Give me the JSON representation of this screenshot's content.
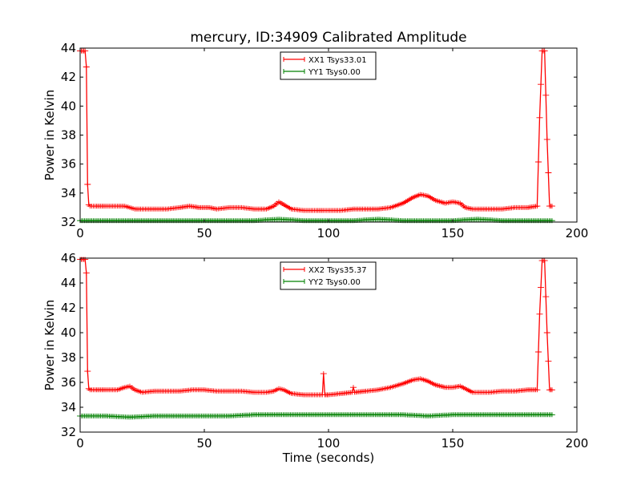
{
  "figure_title": "mercury, ID:34909 Calibrated Amplitude",
  "chart_data": [
    {
      "type": "line",
      "title": "mercury, ID:34909 Calibrated Amplitude",
      "xlabel": "",
      "ylabel": "Power in Kelvin",
      "xlim": [
        0,
        200
      ],
      "ylim": [
        32,
        44
      ],
      "xticks": [
        "0",
        "50",
        "100",
        "150",
        "200"
      ],
      "yticks": [
        "32",
        "34",
        "36",
        "38",
        "40",
        "42",
        "44"
      ],
      "legend_position": "top-center",
      "series": [
        {
          "name": "XX1 Tsys33.01",
          "color": "#ff0000",
          "marker": "plus",
          "x": [
            0,
            1,
            2,
            2.5,
            3,
            3.5,
            4,
            6,
            10,
            15,
            18,
            20,
            22,
            25,
            30,
            35,
            40,
            44,
            48,
            52,
            55,
            60,
            65,
            70,
            75,
            78,
            80,
            82,
            85,
            90,
            95,
            98,
            100,
            105,
            110,
            115,
            120,
            125,
            130,
            134,
            137,
            140,
            143,
            147,
            150,
            153,
            155,
            158,
            160,
            165,
            170,
            175,
            180,
            184,
            185,
            186,
            187,
            188,
            189,
            190
          ],
          "y": [
            43.8,
            43.8,
            43.8,
            42.7,
            34.6,
            33.2,
            33.1,
            33.1,
            33.1,
            33.1,
            33.1,
            33.0,
            32.9,
            32.9,
            32.9,
            32.9,
            33.0,
            33.1,
            33.0,
            33.0,
            32.9,
            33.0,
            33.0,
            32.9,
            32.9,
            33.1,
            33.4,
            33.2,
            32.9,
            32.8,
            32.8,
            32.8,
            32.8,
            32.8,
            32.9,
            32.9,
            32.9,
            33.0,
            33.3,
            33.7,
            33.9,
            33.8,
            33.5,
            33.3,
            33.4,
            33.3,
            33.0,
            32.9,
            32.9,
            32.9,
            32.9,
            33.0,
            33.0,
            33.1,
            39.2,
            43.8,
            43.8,
            37.7,
            33.1,
            33.1
          ]
        },
        {
          "name": "YY1 Tsys0.00",
          "color": "#008000",
          "marker": "plus",
          "x": [
            0,
            10,
            20,
            30,
            40,
            50,
            60,
            70,
            80,
            90,
            100,
            110,
            120,
            130,
            140,
            150,
            160,
            170,
            180,
            190
          ],
          "y": [
            32.1,
            32.1,
            32.1,
            32.1,
            32.1,
            32.1,
            32.1,
            32.1,
            32.2,
            32.1,
            32.1,
            32.1,
            32.2,
            32.1,
            32.1,
            32.1,
            32.2,
            32.1,
            32.1,
            32.1
          ]
        }
      ]
    },
    {
      "type": "line",
      "title": "",
      "xlabel": "Time (seconds)",
      "ylabel": "Power in Kelvin",
      "xlim": [
        0,
        200
      ],
      "ylim": [
        32,
        46
      ],
      "xticks": [
        "0",
        "50",
        "100",
        "150",
        "200"
      ],
      "yticks": [
        "32",
        "34",
        "36",
        "38",
        "40",
        "42",
        "44",
        "46"
      ],
      "legend_position": "top-center",
      "series": [
        {
          "name": "XX2 Tsys35.37",
          "color": "#ff0000",
          "marker": "plus",
          "x": [
            0,
            1,
            2,
            2.5,
            3,
            3.5,
            4,
            6,
            10,
            15,
            18,
            20,
            22,
            25,
            30,
            35,
            40,
            45,
            50,
            55,
            60,
            65,
            70,
            75,
            78,
            80,
            82,
            85,
            90,
            95,
            97.5,
            98,
            98.5,
            100,
            105,
            109.5,
            110,
            110.5,
            115,
            120,
            125,
            130,
            134,
            137,
            140,
            143,
            147,
            150,
            153,
            155,
            158,
            160,
            165,
            170,
            175,
            180,
            184,
            185,
            186,
            187,
            188,
            189,
            190
          ],
          "y": [
            45.9,
            45.9,
            45.9,
            44.8,
            36.9,
            35.5,
            35.4,
            35.4,
            35.4,
            35.4,
            35.6,
            35.7,
            35.4,
            35.2,
            35.3,
            35.3,
            35.3,
            35.4,
            35.4,
            35.3,
            35.3,
            35.3,
            35.2,
            35.2,
            35.3,
            35.5,
            35.4,
            35.1,
            35.0,
            35.0,
            35.0,
            36.7,
            35.0,
            35.0,
            35.1,
            35.2,
            35.6,
            35.2,
            35.3,
            35.4,
            35.6,
            35.9,
            36.2,
            36.3,
            36.1,
            35.8,
            35.6,
            35.6,
            35.7,
            35.5,
            35.2,
            35.2,
            35.2,
            35.3,
            35.3,
            35.4,
            35.4,
            41.5,
            45.8,
            45.8,
            40.0,
            35.4,
            35.4
          ]
        },
        {
          "name": "YY2 Tsys0.00",
          "color": "#008000",
          "marker": "plus",
          "x": [
            0,
            10,
            20,
            30,
            40,
            50,
            60,
            70,
            80,
            90,
            100,
            110,
            120,
            130,
            140,
            150,
            160,
            170,
            180,
            190
          ],
          "y": [
            33.3,
            33.3,
            33.2,
            33.3,
            33.3,
            33.3,
            33.3,
            33.4,
            33.4,
            33.4,
            33.4,
            33.4,
            33.4,
            33.4,
            33.3,
            33.4,
            33.4,
            33.4,
            33.4,
            33.4
          ]
        }
      ]
    }
  ]
}
